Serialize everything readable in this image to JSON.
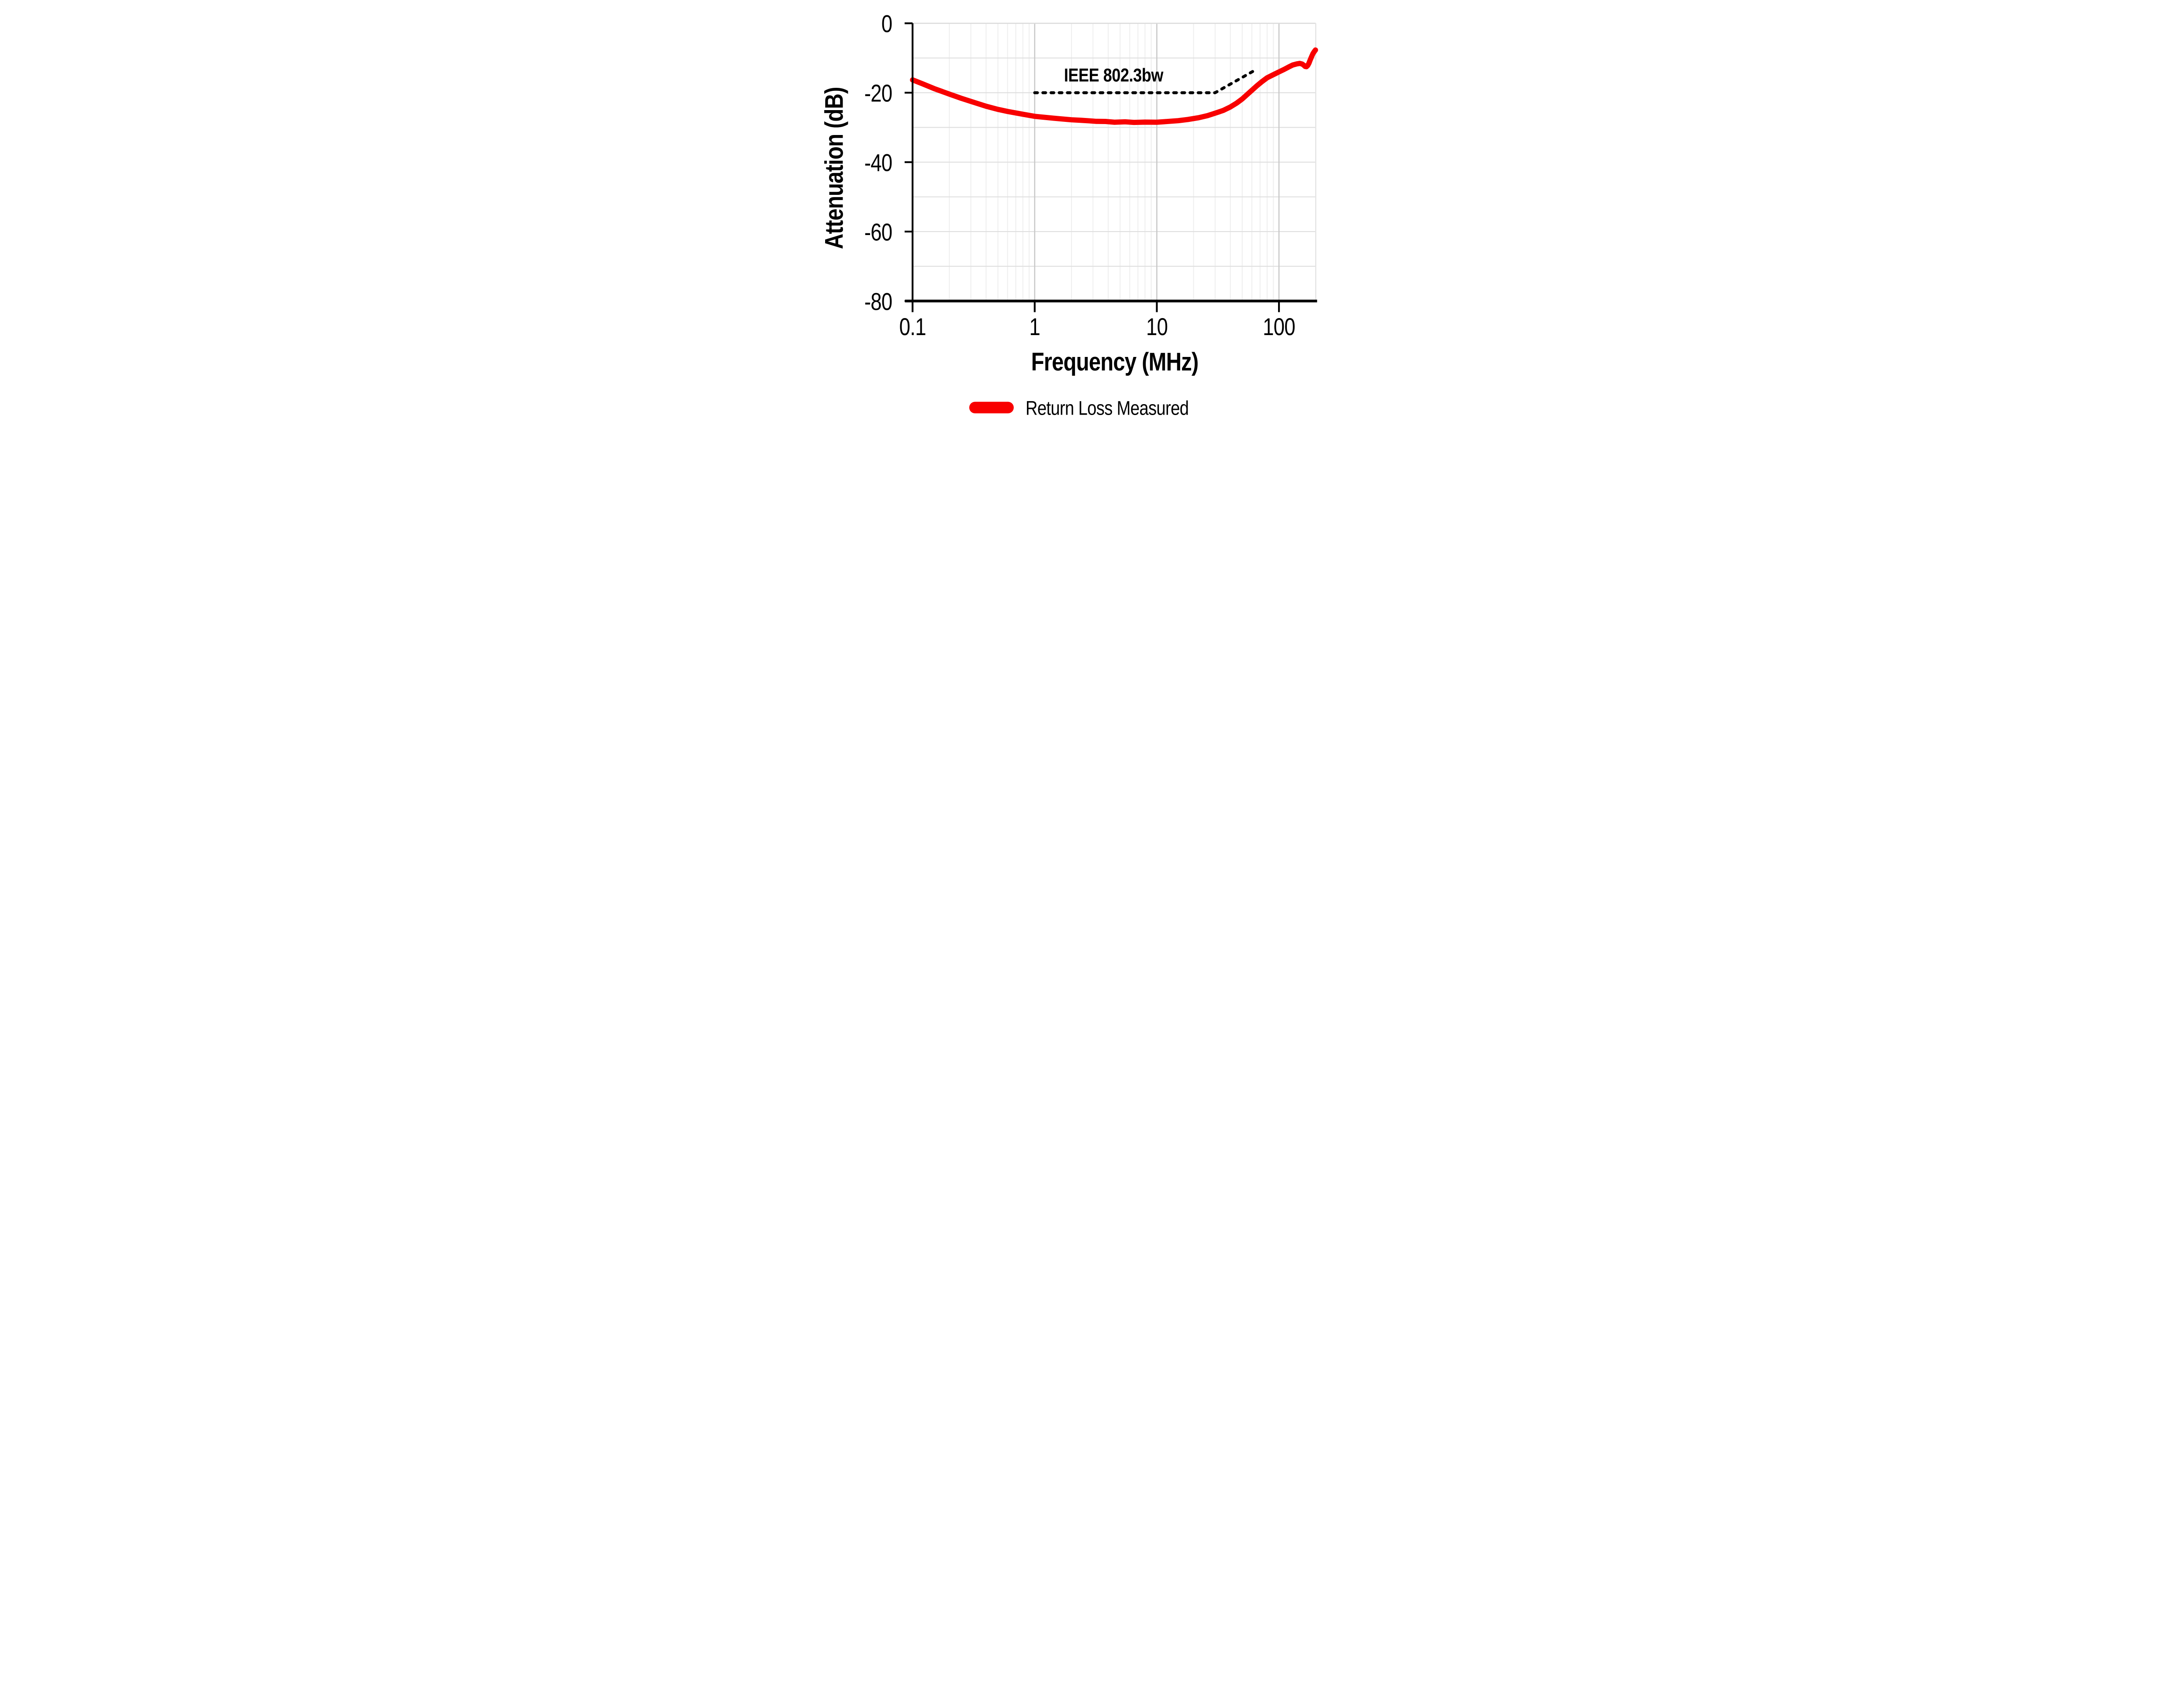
{
  "chart_data": {
    "type": "line",
    "title": "",
    "xlabel": "Frequency (MHz)",
    "ylabel": "Attenuation (dB)",
    "x_axis": {
      "scale": "log",
      "min": 0.1,
      "max": 200,
      "ticks": [
        0.1,
        1,
        10,
        100
      ],
      "tick_labels": [
        "0.1",
        "1",
        "10",
        "100"
      ]
    },
    "y_axis": {
      "scale": "linear",
      "min": -80,
      "max": 0,
      "ticks": [
        0,
        -20,
        -40,
        -60,
        -80
      ],
      "tick_labels": [
        "0",
        "-20",
        "-40",
        "-60",
        "-80"
      ]
    },
    "grid": {
      "horizontal_step_db": 10,
      "vertical": "log decades, minor lines at 2-9 per decade",
      "on": true
    },
    "annotation": {
      "text": "IEEE 802.3bw"
    },
    "legend": {
      "position": "bottom",
      "items": [
        {
          "label": "Return Loss Measured",
          "color": "#f80000"
        }
      ]
    },
    "series": [
      {
        "name": "Return Loss Measured",
        "role": "measured",
        "color": "#f80000",
        "style": "solid",
        "points": [
          [
            0.1,
            -16.3
          ],
          [
            0.12,
            -17.4
          ],
          [
            0.15,
            -18.8
          ],
          [
            0.2,
            -20.4
          ],
          [
            0.25,
            -21.6
          ],
          [
            0.3,
            -22.5
          ],
          [
            0.4,
            -23.9
          ],
          [
            0.5,
            -24.8
          ],
          [
            0.6,
            -25.4
          ],
          [
            0.8,
            -26.2
          ],
          [
            1.0,
            -26.8
          ],
          [
            1.3,
            -27.2
          ],
          [
            1.6,
            -27.5
          ],
          [
            2.0,
            -27.8
          ],
          [
            2.4,
            -27.95
          ],
          [
            2.8,
            -28.1
          ],
          [
            3.2,
            -28.25
          ],
          [
            3.8,
            -28.28
          ],
          [
            4.5,
            -28.5
          ],
          [
            5.5,
            -28.38
          ],
          [
            6.5,
            -28.55
          ],
          [
            8.0,
            -28.47
          ],
          [
            10,
            -28.5
          ],
          [
            12,
            -28.3
          ],
          [
            15,
            -28.05
          ],
          [
            18,
            -27.7
          ],
          [
            22,
            -27.2
          ],
          [
            26,
            -26.6
          ],
          [
            30,
            -25.9
          ],
          [
            35,
            -25.1
          ],
          [
            40,
            -24.1
          ],
          [
            45,
            -23.0
          ],
          [
            50,
            -21.8
          ],
          [
            55,
            -20.5
          ],
          [
            60,
            -19.3
          ],
          [
            66,
            -18.0
          ],
          [
            72,
            -16.9
          ],
          [
            80,
            -15.7
          ],
          [
            90,
            -14.8
          ],
          [
            100,
            -14.0
          ],
          [
            110,
            -13.3
          ],
          [
            120,
            -12.6
          ],
          [
            130,
            -12.0
          ],
          [
            140,
            -11.7
          ],
          [
            148,
            -11.55
          ],
          [
            155,
            -11.75
          ],
          [
            160,
            -12.1
          ],
          [
            164,
            -12.45
          ],
          [
            168,
            -12.5
          ],
          [
            172,
            -12.15
          ],
          [
            176,
            -11.5
          ],
          [
            180,
            -10.6
          ],
          [
            185,
            -9.6
          ],
          [
            190,
            -8.7
          ],
          [
            195,
            -8.1
          ],
          [
            199,
            -7.7
          ]
        ]
      },
      {
        "name": "IEEE 802.3bw",
        "role": "limit",
        "color": "#000000",
        "style": "dashed",
        "points": [
          [
            1,
            -20
          ],
          [
            30,
            -20
          ],
          [
            66,
            -13.2
          ]
        ]
      }
    ]
  },
  "colors": {
    "background": "#ffffff",
    "axis": "#000000",
    "grid_horizontal": "#dedede",
    "grid_vertical_minor": "#efefef",
    "grid_vertical_major": "#c8c8c8",
    "frame_top": "#dcdcdc",
    "frame_right": "#e4e4e4",
    "measured_red": "#f80000",
    "limit_black": "#000000"
  }
}
